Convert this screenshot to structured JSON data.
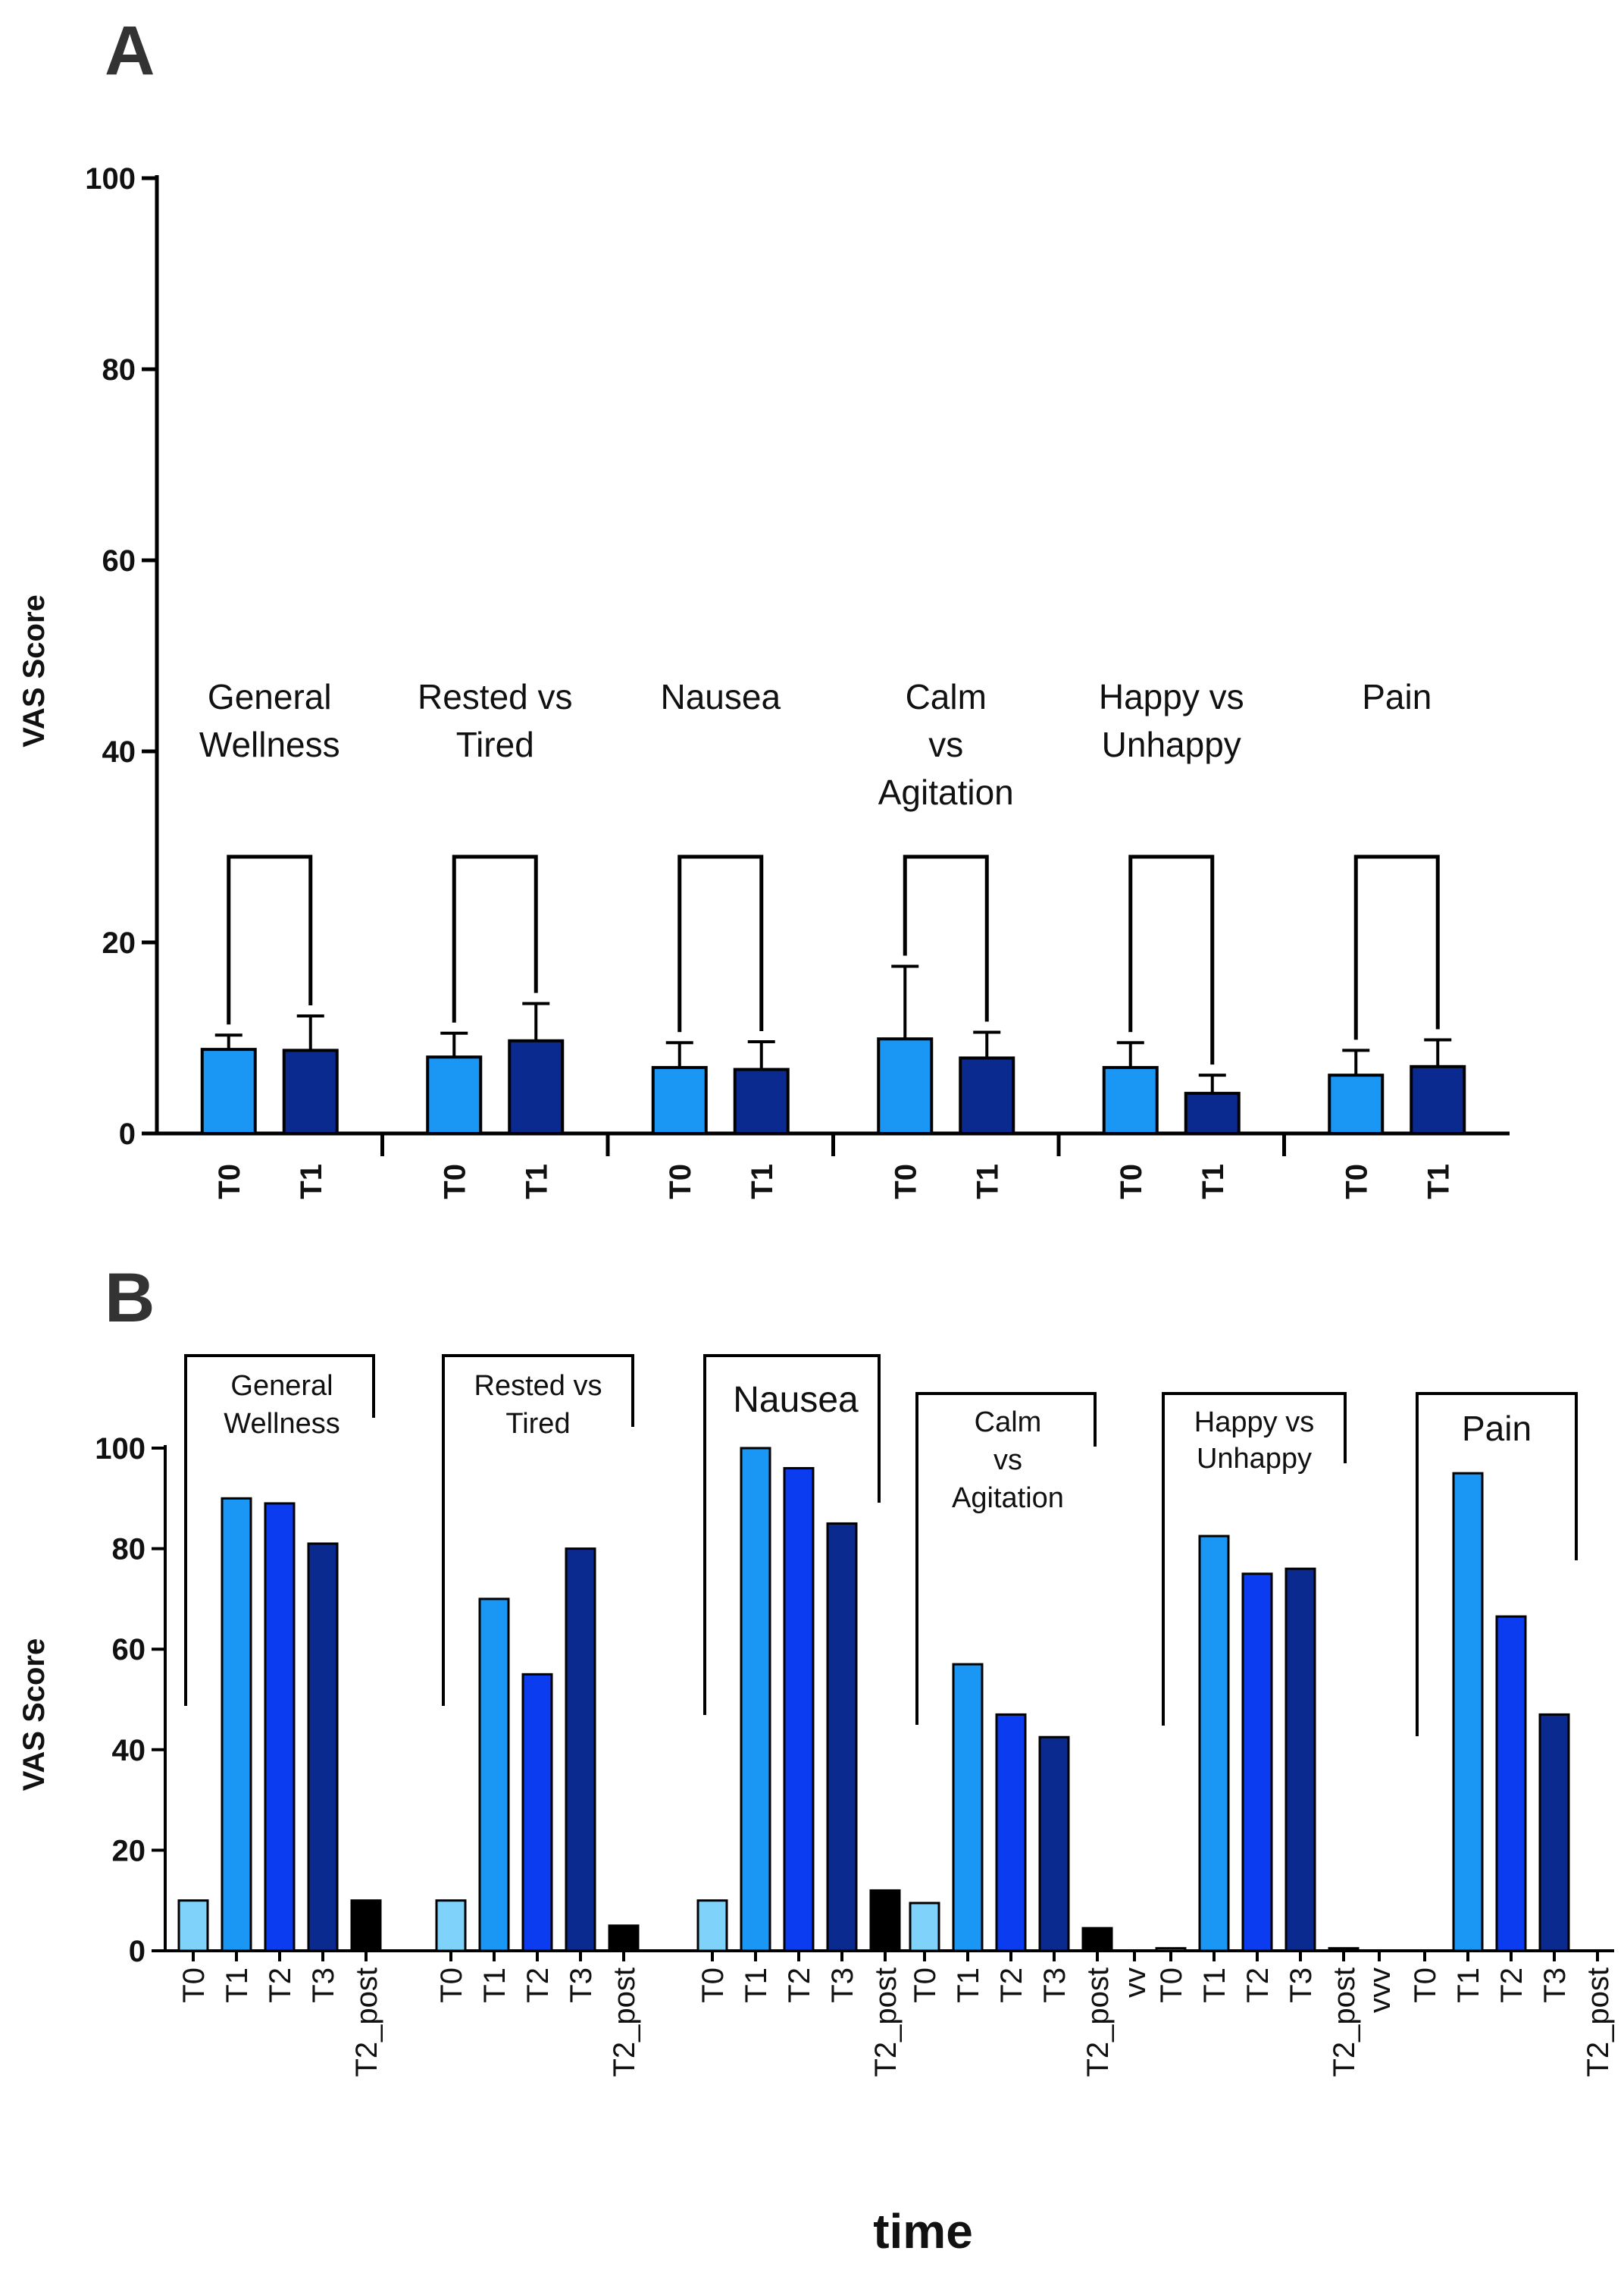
{
  "figure": {
    "colors": {
      "T0_A": "#1a96f5",
      "T1_A": "#0b2a8f",
      "T0_B": "#7fd3fb",
      "T1_B": "#1a96f5",
      "T2_B": "#0b3cf0",
      "T3_B": "#0b2a8f",
      "T2_post_B": "#000000",
      "axis": "#000000"
    }
  },
  "chart_data": [
    {
      "panel": "A",
      "type": "bar",
      "ylabel": "VAS Score",
      "ylim": [
        0,
        100
      ],
      "yticks": [
        0,
        20,
        40,
        60,
        80,
        100
      ],
      "groups": [
        {
          "label": "General Wellness",
          "label_lines": [
            "General",
            "Wellness"
          ],
          "bars": [
            {
              "tick": "T0",
              "value": 8.8,
              "error": 1.5
            },
            {
              "tick": "T1",
              "value": 8.7,
              "error": 3.6
            }
          ]
        },
        {
          "label": "Rested vs Tired",
          "label_lines": [
            "Rested vs",
            "Tired"
          ],
          "bars": [
            {
              "tick": "T0",
              "value": 8.0,
              "error": 2.5
            },
            {
              "tick": "T1",
              "value": 9.7,
              "error": 3.9
            }
          ]
        },
        {
          "label": "Nausea",
          "label_lines": [
            "Nausea"
          ],
          "bars": [
            {
              "tick": "T0",
              "value": 6.9,
              "error": 2.6
            },
            {
              "tick": "T1",
              "value": 6.7,
              "error": 2.9
            }
          ]
        },
        {
          "label": "Calm vs Agitation",
          "label_lines": [
            "Calm",
            "vs",
            "Agitation"
          ],
          "bars": [
            {
              "tick": "T0",
              "value": 9.9,
              "error": 7.6
            },
            {
              "tick": "T1",
              "value": 7.9,
              "error": 2.7
            }
          ]
        },
        {
          "label": "Happy vs Unhappy",
          "label_lines": [
            "Happy vs",
            "Unhappy"
          ],
          "bars": [
            {
              "tick": "T0",
              "value": 6.9,
              "error": 2.6
            },
            {
              "tick": "T1",
              "value": 4.2,
              "error": 1.9
            }
          ]
        },
        {
          "label": "Pain",
          "label_lines": [
            "Pain"
          ],
          "bars": [
            {
              "tick": "T0",
              "value": 6.1,
              "error": 2.6
            },
            {
              "tick": "T1",
              "value": 7.0,
              "error": 2.8
            }
          ]
        }
      ]
    },
    {
      "panel": "B",
      "type": "bar",
      "ylabel": "VAS Score",
      "xlabel": "time",
      "ylim": [
        0,
        100
      ],
      "yticks": [
        0,
        20,
        40,
        60,
        80,
        100
      ],
      "groups": [
        {
          "label": "General Wellness",
          "label_lines": [
            "General",
            "Wellness"
          ],
          "bars": [
            {
              "tick": "T0",
              "value": 10
            },
            {
              "tick": "T1",
              "value": 90
            },
            {
              "tick": "T2",
              "value": 89
            },
            {
              "tick": "T3",
              "value": 81
            },
            {
              "tick": "T2_post",
              "value": 10
            }
          ]
        },
        {
          "label": "Rested vs Tired",
          "label_lines": [
            "Rested vs",
            "Tired"
          ],
          "bars": [
            {
              "tick": "T0",
              "value": 10
            },
            {
              "tick": "T1",
              "value": 70
            },
            {
              "tick": "T2",
              "value": 55
            },
            {
              "tick": "T3",
              "value": 80
            },
            {
              "tick": "T2_post",
              "value": 5
            }
          ]
        },
        {
          "label": "Nausea",
          "label_lines": [
            "Nausea"
          ],
          "bars": [
            {
              "tick": "T0",
              "value": 10
            },
            {
              "tick": "T1",
              "value": 100
            },
            {
              "tick": "T2",
              "value": 96
            },
            {
              "tick": "T3",
              "value": 85
            },
            {
              "tick": "T2_post",
              "value": 12
            }
          ]
        },
        {
          "label": "Calm vs Agitation",
          "label_lines": [
            "Calm",
            "vs",
            "Agitation"
          ],
          "bars": [
            {
              "tick": "T0",
              "value": 9.5
            },
            {
              "tick": "T1",
              "value": 57
            },
            {
              "tick": "T2",
              "value": 47
            },
            {
              "tick": "T3",
              "value": 42.5
            },
            {
              "tick": "T2_post",
              "value": 4.5
            }
          ]
        },
        {
          "label": "Happy vs Unhappy",
          "label_lines": [
            "Happy vs",
            "Unhappy"
          ],
          "prefix_tick": "vv",
          "bars": [
            {
              "tick": "T0",
              "value": 0.5
            },
            {
              "tick": "T1",
              "value": 82.5
            },
            {
              "tick": "T2",
              "value": 75
            },
            {
              "tick": "T3",
              "value": 76
            },
            {
              "tick": "T2_post",
              "value": 0.5
            }
          ]
        },
        {
          "label": "Pain",
          "label_lines": [
            "Pain"
          ],
          "prefix_tick": "vvv",
          "bars": [
            {
              "tick": "T0",
              "value": 0
            },
            {
              "tick": "T1",
              "value": 95
            },
            {
              "tick": "T2",
              "value": 66.5
            },
            {
              "tick": "T3",
              "value": 47
            },
            {
              "tick": "T2_post",
              "value": 0
            }
          ]
        }
      ]
    }
  ],
  "panels": {
    "A": {
      "letter": "A"
    },
    "B": {
      "letter": "B"
    }
  }
}
